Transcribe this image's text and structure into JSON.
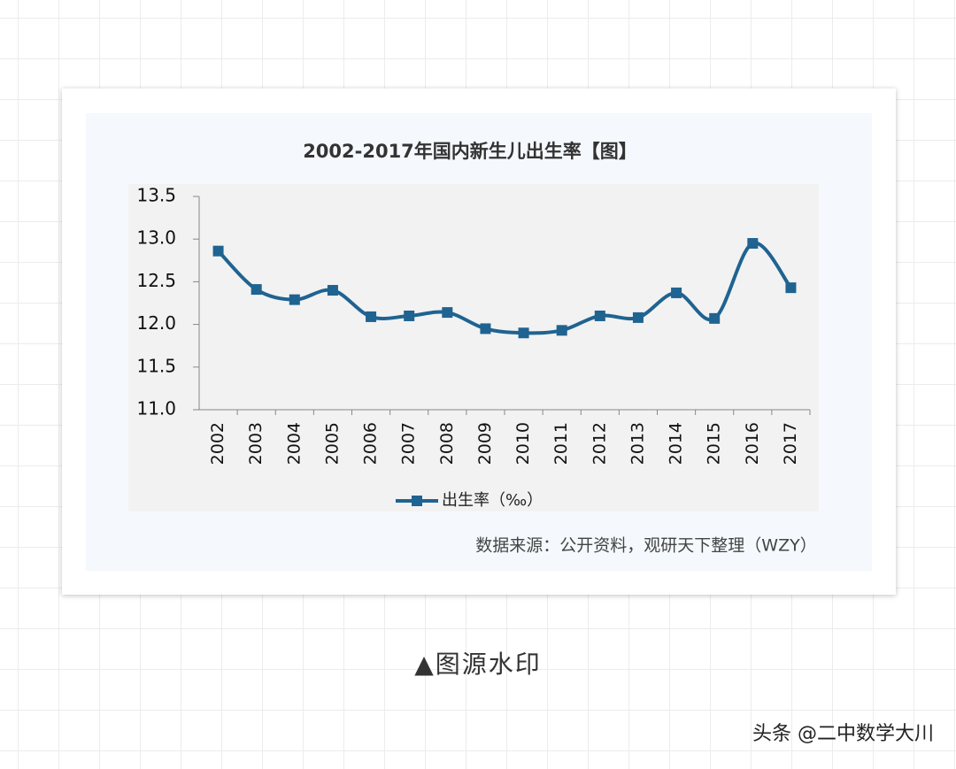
{
  "chart_data": {
    "type": "line",
    "title": "2002-2017年国内新生儿出生率【图】",
    "categories": [
      "2002",
      "2003",
      "2004",
      "2005",
      "2006",
      "2007",
      "2008",
      "2009",
      "2010",
      "2011",
      "2012",
      "2013",
      "2014",
      "2015",
      "2016",
      "2017"
    ],
    "series": [
      {
        "name": "出生率（‰）",
        "color": "#1f6391",
        "values": [
          12.86,
          12.41,
          12.29,
          12.4,
          12.09,
          12.1,
          12.14,
          11.95,
          11.9,
          11.93,
          12.1,
          12.08,
          12.37,
          12.07,
          12.95,
          12.43
        ]
      }
    ],
    "ylim": [
      11,
      13.5
    ],
    "yticks": [
      {
        "value": 11,
        "label": "11.0"
      },
      11.5,
      {
        "value": 12,
        "label": "12.0"
      },
      12.5,
      {
        "value": 13,
        "label": "13.0"
      },
      13.5
    ],
    "grid": false,
    "legend": "bottom",
    "source": "数据来源：公开资料，观研天下整理（WZY）"
  },
  "caption": "▲图源水印",
  "watermark": "头条 @二中数学大川"
}
